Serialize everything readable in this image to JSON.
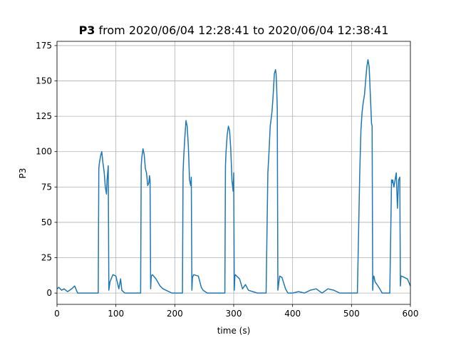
{
  "chart_data": {
    "type": "line",
    "title_bold": "P3",
    "title_rest": "from 2020/06/04 12:28:41 to 2020/06/04 12:38:41",
    "xlabel": "time (s)",
    "ylabel": "P3",
    "xlim": [
      0,
      600
    ],
    "ylim": [
      -8,
      178
    ],
    "xticks": [
      0,
      100,
      200,
      300,
      400,
      500,
      600
    ],
    "yticks": [
      0,
      25,
      50,
      75,
      100,
      125,
      150,
      175
    ],
    "grid": true,
    "series": [
      {
        "color": "#1f77b4",
        "x": [
          0,
          3,
          8,
          12,
          18,
          25,
          30,
          35,
          50,
          65,
          70,
          71,
          72,
          74,
          76,
          78,
          80,
          82,
          84,
          85,
          86,
          87,
          88,
          90,
          95,
          100,
          105,
          108,
          110,
          115,
          125,
          135,
          142,
          143,
          144,
          146,
          148,
          150,
          152,
          154,
          156,
          157,
          158,
          159,
          160,
          162,
          168,
          175,
          180,
          185,
          195,
          205,
          213,
          214,
          215,
          217,
          219,
          221,
          223,
          225,
          227,
          228,
          229,
          230,
          232,
          240,
          245,
          248,
          255,
          270,
          285,
          286,
          287,
          289,
          291,
          293,
          295,
          297,
          299,
          300,
          301,
          302,
          303,
          305,
          310,
          315,
          320,
          325,
          340,
          355,
          358,
          360,
          362,
          365,
          367,
          369,
          371,
          372,
          373,
          374,
          375,
          378,
          382,
          388,
          392,
          400,
          410,
          420,
          430,
          440,
          450,
          460,
          470,
          480,
          490,
          500,
          510,
          514,
          515,
          516,
          518,
          520,
          522,
          524,
          526,
          528,
          530,
          532,
          534,
          535,
          536,
          537,
          538,
          540,
          545,
          548,
          552,
          558,
          565,
          568,
          569,
          570,
          572,
          574,
          576,
          578,
          580,
          582,
          583,
          584,
          585,
          590,
          595,
          600
        ],
        "y": [
          3,
          4,
          2,
          3,
          1,
          3,
          5,
          0,
          0,
          0,
          0,
          88,
          92,
          97,
          100,
          92,
          86,
          75,
          70,
          80,
          85,
          90,
          2,
          8,
          13,
          12,
          3,
          10,
          2,
          0,
          0,
          0,
          0,
          90,
          96,
          102,
          98,
          88,
          85,
          76,
          78,
          83,
          80,
          3,
          12,
          13,
          10,
          5,
          3,
          2,
          0,
          0,
          0,
          85,
          95,
          110,
          122,
          118,
          104,
          80,
          76,
          82,
          2,
          11,
          13,
          12,
          4,
          2,
          0,
          0,
          0,
          90,
          100,
          112,
          118,
          115,
          102,
          80,
          72,
          85,
          2,
          12,
          13,
          12,
          10,
          3,
          6,
          2,
          0,
          0,
          85,
          100,
          118,
          128,
          140,
          155,
          158,
          155,
          145,
          130,
          2,
          12,
          11,
          3,
          0,
          0,
          1,
          0,
          2,
          3,
          0,
          3,
          2,
          0,
          0,
          0,
          0,
          85,
          100,
          115,
          128,
          135,
          140,
          150,
          160,
          165,
          160,
          140,
          120,
          118,
          2,
          11,
          12,
          8,
          5,
          3,
          0,
          0,
          0,
          80,
          78,
          80,
          75,
          80,
          85,
          60,
          80,
          82,
          5,
          12,
          12,
          11,
          10,
          5
        ]
      }
    ]
  }
}
